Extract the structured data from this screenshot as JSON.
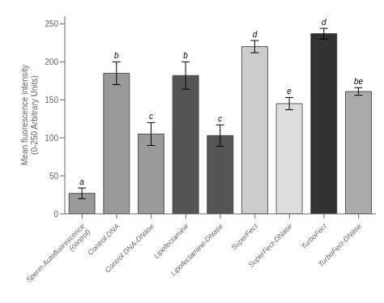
{
  "chart_data": {
    "type": "bar",
    "categories": [
      "Sperm Autofluorescence\n(control)",
      "Control DNA",
      "Control DNA-DNase",
      "Lipofectamine",
      "Lipofectamine-DNase",
      "SuperFect",
      "SuperFect-DNase",
      "TurboFect",
      "TurboFect-DNase"
    ],
    "values": [
      27,
      185,
      105,
      182,
      103,
      220,
      145,
      237,
      161
    ],
    "errors": [
      7,
      15,
      15,
      18,
      14,
      8,
      8,
      7,
      5
    ],
    "annotations": [
      "a",
      "b",
      "c",
      "b",
      "c",
      "d",
      "e",
      "d",
      "be"
    ],
    "colors": [
      "#999999",
      "#999999",
      "#999999",
      "#555555",
      "#555555",
      "#cccccc",
      "#dddddd",
      "#333333",
      "#aaaaaa"
    ],
    "ylabel": "Mean fluorescence intensity\n(0-250 Arbitrary Units)",
    "ylim": [
      0,
      260
    ],
    "yticks": [
      0,
      50,
      100,
      150,
      200,
      250
    ],
    "grid": false
  }
}
